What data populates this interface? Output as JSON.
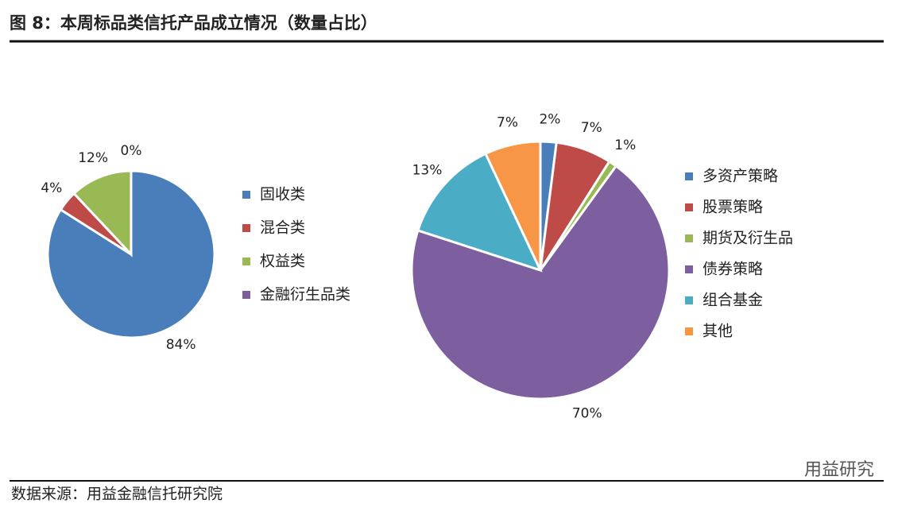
{
  "title": "图 8：本周标品类信托产品成立情况（数量占比）",
  "chart_data": [
    {
      "type": "pie",
      "categories": [
        "固收类",
        "混合类",
        "权益类",
        "金融衍生品类"
      ],
      "values": [
        84,
        4,
        12,
        0
      ],
      "value_labels": [
        "84%",
        "4%",
        "12%",
        "0%"
      ],
      "colors": [
        "#4a7ebb",
        "#be4b48",
        "#98b954",
        "#7d5fa0"
      ]
    },
    {
      "type": "pie",
      "categories": [
        "多资产策略",
        "股票策略",
        "期货及衍生品",
        "债券策略",
        "组合基金",
        "其他"
      ],
      "values": [
        2,
        7,
        1,
        70,
        13,
        7
      ],
      "value_labels": [
        "2%",
        "7%",
        "1%",
        "70%",
        "13%",
        "7%"
      ],
      "colors": [
        "#4a7ebb",
        "#be4b48",
        "#98b954",
        "#7d5fa0",
        "#4bacc6",
        "#f79646"
      ]
    }
  ],
  "source": "数据来源：用益金融信托研究院",
  "watermark": "用益研究"
}
